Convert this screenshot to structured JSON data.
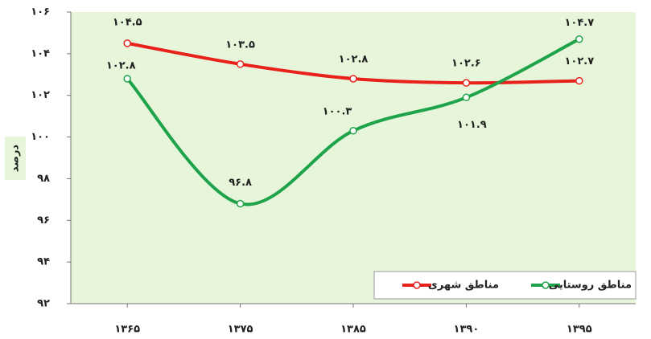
{
  "chart_data": {
    "type": "line",
    "y_label": "درصد",
    "categories": [
      "۱۳۶۵",
      "۱۳۷۵",
      "۱۳۸۵",
      "۱۳۹۰",
      "۱۳۹۵"
    ],
    "series": [
      {
        "name": "مناطق شهری",
        "color": "#e8211b",
        "values": [
          104.5,
          103.5,
          102.8,
          102.6,
          102.7
        ],
        "value_labels": [
          "۱۰۴.۵",
          "۱۰۳.۵",
          "۱۰۲.۸",
          "۱۰۲.۶",
          "۱۰۲.۷"
        ]
      },
      {
        "name": "مناطق روستایی",
        "color": "#1fa34a",
        "values": [
          102.8,
          96.8,
          100.3,
          101.9,
          104.7
        ],
        "value_labels": [
          "۱۰۲.۸",
          "۹۶.۸",
          "۱۰۰.۳",
          "۱۰۱.۹",
          "۱۰۴.۷"
        ]
      }
    ],
    "ylim": [
      92,
      106
    ],
    "yticks": [
      {
        "value": 92,
        "label": "۹۲"
      },
      {
        "value": 94,
        "label": "۹۴"
      },
      {
        "value": 96,
        "label": "۹۶"
      },
      {
        "value": 98,
        "label": "۹۸"
      },
      {
        "value": 100,
        "label": "۱۰۰"
      },
      {
        "value": 102,
        "label": "۱۰۲"
      },
      {
        "value": 104,
        "label": "۱۰۴"
      },
      {
        "value": 106,
        "label": "۱۰۶"
      }
    ],
    "grid": false
  }
}
